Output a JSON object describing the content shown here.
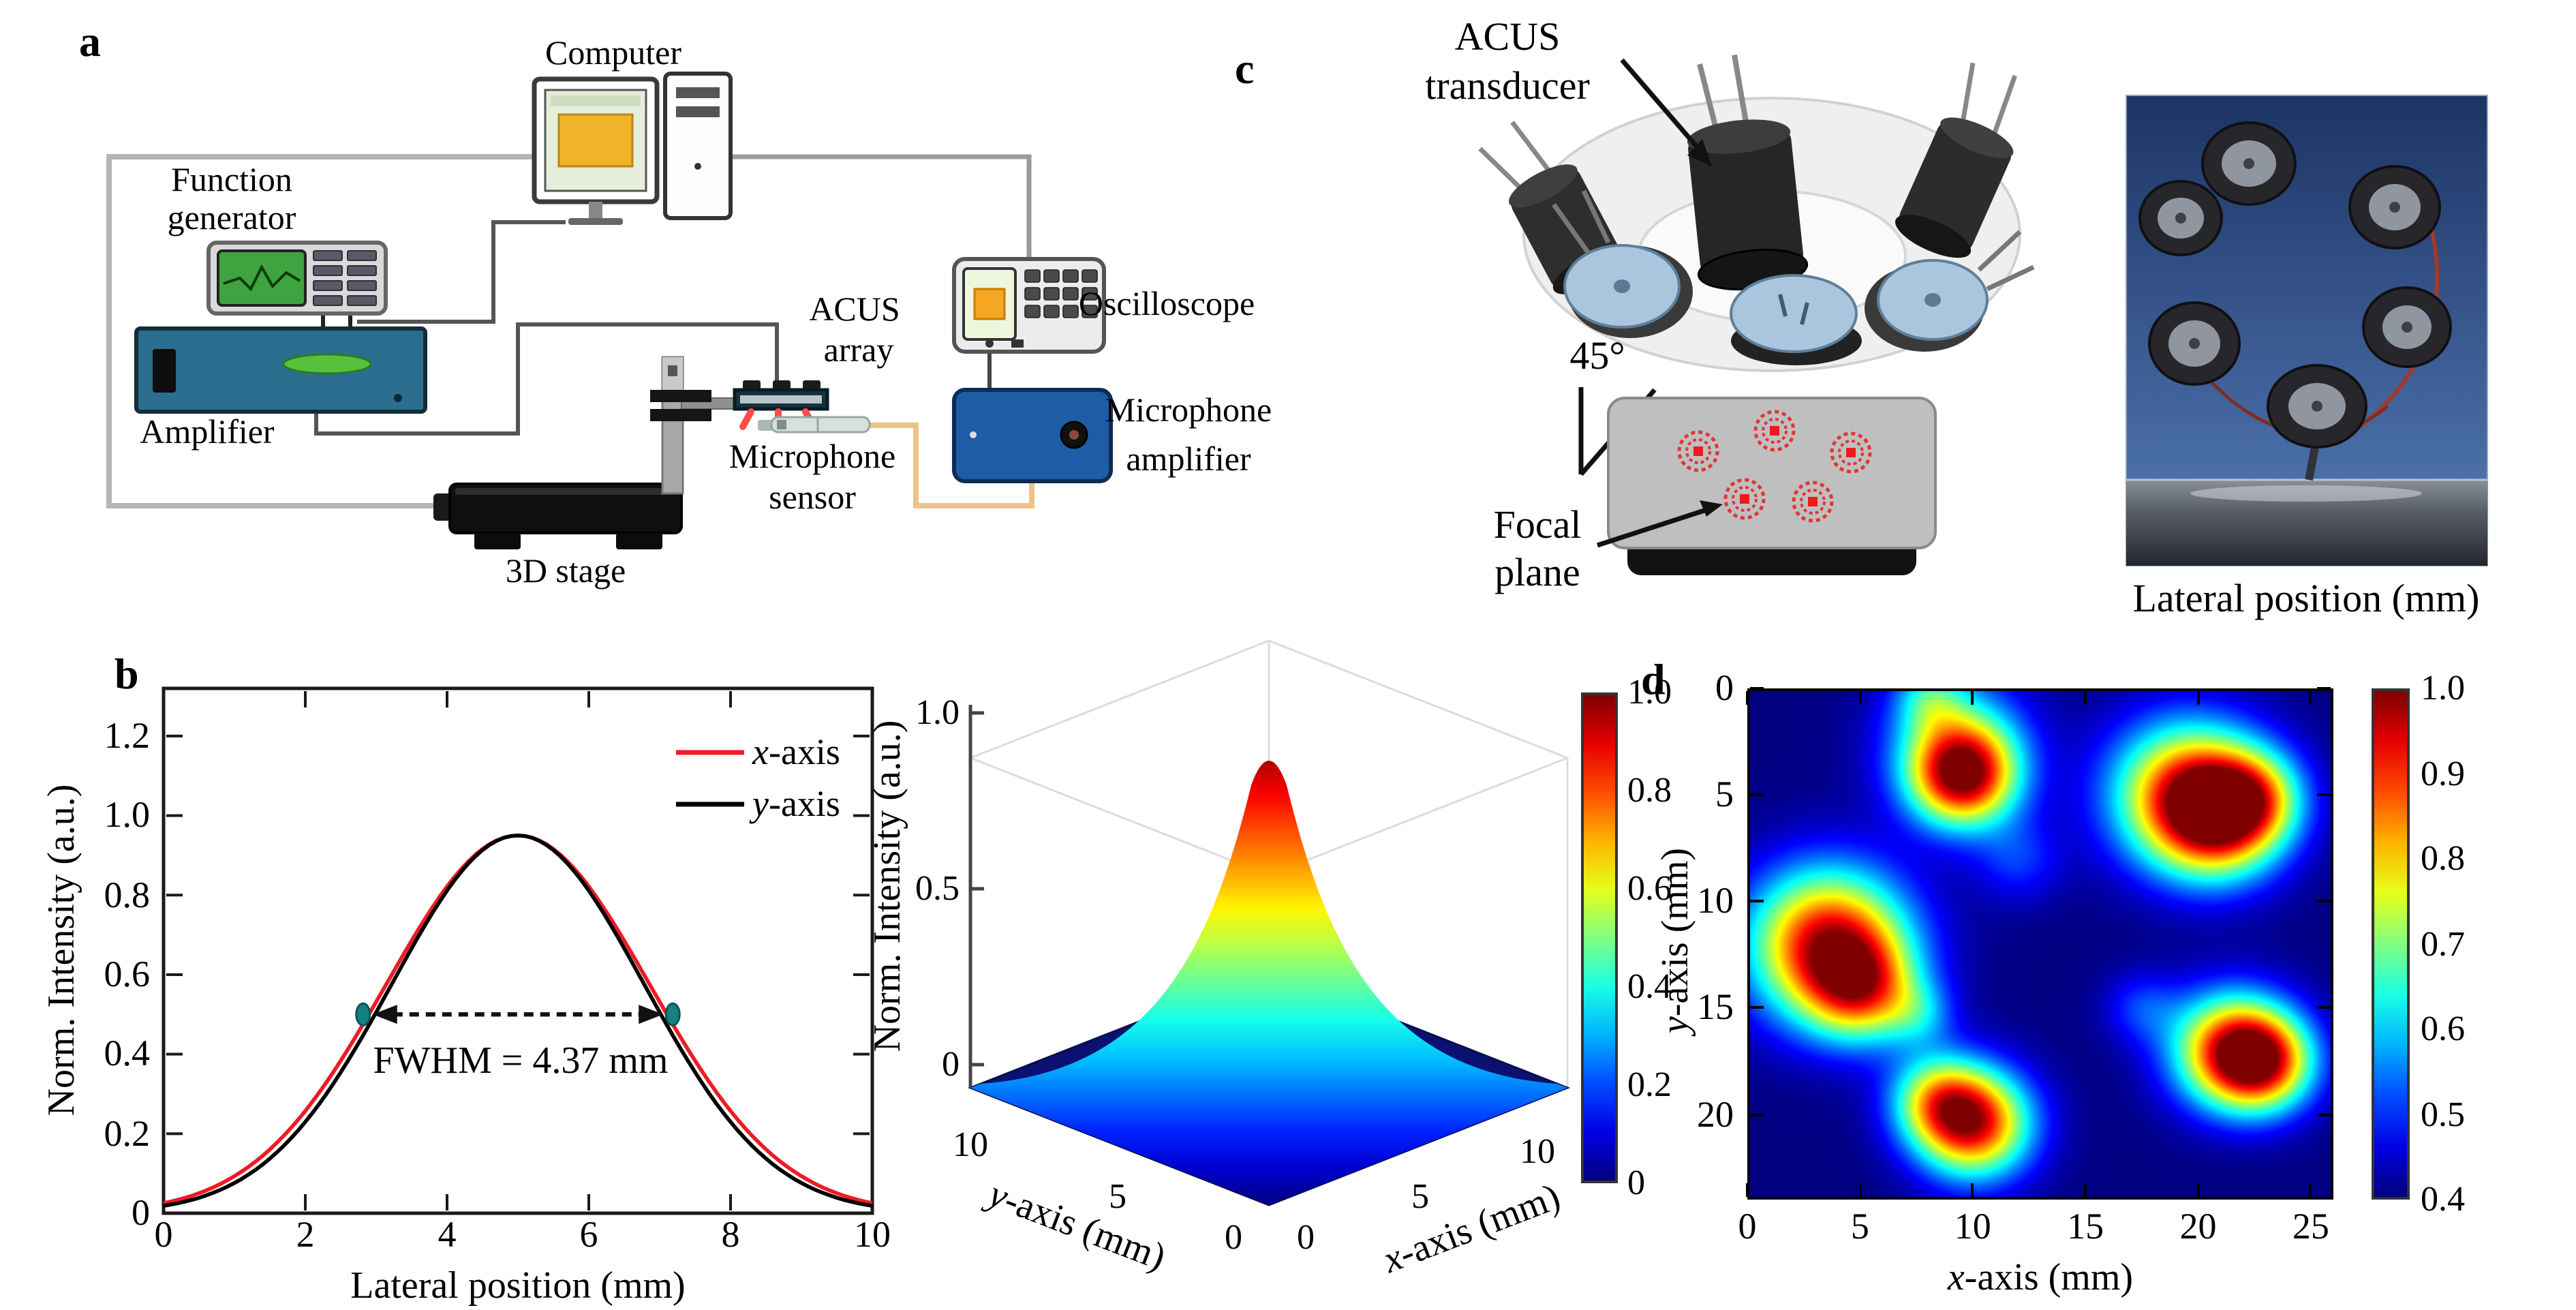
{
  "figure": {
    "panels": {
      "a": {
        "label": "a",
        "components": {
          "computer": "Computer",
          "function_generator": [
            "Function",
            "generator"
          ],
          "amplifier": "Amplifier",
          "acus_array": [
            "ACUS",
            "array"
          ],
          "microphone_sensor": [
            "Microphone",
            "sensor"
          ],
          "stage_3d": "3D stage",
          "oscilloscope": "Oscilloscope",
          "microphone_amplifier": [
            "Microphone",
            "amplifier"
          ]
        }
      },
      "b": {
        "label": "b"
      },
      "c": {
        "label": "c",
        "transducer_label": [
          "ACUS",
          "transducer"
        ],
        "angle": "45°",
        "focal_label": [
          "Focal",
          "plane"
        ],
        "photo_caption": "Lateral position (mm)"
      },
      "d": {
        "label": "d"
      }
    }
  },
  "chart_data": [
    {
      "type": "line",
      "panel": "b-left",
      "title": "",
      "xlabel": "Lateral position (mm)",
      "ylabel": "Norm. Intensity (a.u.)",
      "xlim": [
        0,
        10
      ],
      "ylim": [
        0,
        1.3
      ],
      "xticks": [
        "0",
        "2",
        "4",
        "6",
        "8",
        "10"
      ],
      "yticks": [
        "0",
        "0.2",
        "0.4",
        "0.6",
        "0.8",
        "1.0",
        "1.2"
      ],
      "grid": false,
      "legend_position": "top-right",
      "series": [
        {
          "name": "x-axis",
          "color": "#ed1c24",
          "center": 5,
          "peak": 0.95,
          "sigma": 1.856,
          "x": [
            0,
            0.5,
            1,
            1.5,
            2,
            2.5,
            3,
            3.5,
            4,
            4.5,
            5,
            5.5,
            6,
            6.5,
            7,
            7.5,
            8,
            8.5,
            9,
            9.5,
            10
          ],
          "y": [
            0.025,
            0.05,
            0.093,
            0.161,
            0.257,
            0.384,
            0.531,
            0.685,
            0.822,
            0.916,
            0.95,
            0.916,
            0.822,
            0.685,
            0.531,
            0.384,
            0.257,
            0.161,
            0.093,
            0.05,
            0.025
          ]
        },
        {
          "name": "y-axis",
          "color": "#000000",
          "center": 5,
          "peak": 0.95,
          "sigma": 1.78,
          "x": [
            0,
            0.5,
            1,
            1.5,
            2,
            2.5,
            3,
            3.5,
            4,
            4.5,
            5,
            5.5,
            6,
            6.5,
            7,
            7.5,
            8,
            8.5,
            9,
            9.5,
            10
          ],
          "y": [
            0.018,
            0.039,
            0.076,
            0.138,
            0.23,
            0.354,
            0.505,
            0.666,
            0.811,
            0.913,
            0.95,
            0.913,
            0.811,
            0.666,
            0.505,
            0.354,
            0.23,
            0.138,
            0.076,
            0.039,
            0.018
          ]
        }
      ],
      "annotation": {
        "text": "FWHM = 4.37 mm",
        "y": 0.5,
        "x_start": 2.815,
        "x_end": 7.185,
        "marker_color": "#178080"
      }
    },
    {
      "type": "heatmap",
      "panel": "b-right",
      "projection": "3d-surface",
      "xlabel": "x-axis (mm)",
      "ylabel": "y-axis (mm)",
      "zlabel": "Norm. Intensity (a.u.)",
      "xlim": [
        0,
        10
      ],
      "ylim": [
        0,
        10
      ],
      "zlim": [
        0,
        1.0
      ],
      "xticks": [
        "0",
        "5",
        "10"
      ],
      "yticks": [
        "0",
        "5",
        "10"
      ],
      "zticks": [
        "1.0",
        "0.5",
        "0"
      ],
      "peak": {
        "x": 5,
        "y": 5,
        "value": 0.95
      },
      "fwhm_mm": 4.37,
      "colormap": "jet",
      "colorbar_range": [
        0,
        1
      ],
      "colorbar_ticks": [
        "1.0",
        "0.8",
        "0.6",
        "0.4",
        "0.2",
        "0"
      ]
    },
    {
      "type": "heatmap",
      "panel": "d",
      "xlabel": "x-axis (mm)",
      "ylabel": "y-axis (mm)",
      "xlim": [
        0,
        26
      ],
      "ylim": [
        0,
        24
      ],
      "y_direction": "down",
      "xticks": [
        "0",
        "5",
        "10",
        "15",
        "20",
        "25"
      ],
      "yticks": [
        "0",
        "5",
        "10",
        "15",
        "20"
      ],
      "colormap": "jet",
      "background_value": 0.4,
      "colorbar_range": [
        0.4,
        1.0
      ],
      "colorbar_ticks": [
        "1.0",
        "0.9",
        "0.8",
        "0.7",
        "0.6",
        "0.5",
        "0.4"
      ],
      "spots": [
        {
          "x": 9.5,
          "y": 4.0,
          "peak": 0.93,
          "radius": 1.7
        },
        {
          "x": 9.2,
          "y": 2.2,
          "peak": 0.6,
          "radius": 2.2
        },
        {
          "x": 19.5,
          "y": 4.8,
          "peak": 0.84,
          "radius": 2.4
        },
        {
          "x": 21.0,
          "y": 6.0,
          "peak": 0.8,
          "radius": 2.0
        },
        {
          "x": 22.6,
          "y": 5.0,
          "peak": 0.62,
          "radius": 1.5
        },
        {
          "x": 3.5,
          "y": 12.0,
          "peak": 0.96,
          "radius": 2.5
        },
        {
          "x": 5.0,
          "y": 14.2,
          "peak": 0.7,
          "radius": 1.7
        },
        {
          "x": 21.5,
          "y": 17.0,
          "peak": 0.86,
          "radius": 1.9
        },
        {
          "x": 23.0,
          "y": 17.6,
          "peak": 0.78,
          "radius": 1.6
        },
        {
          "x": 10.0,
          "y": 20.5,
          "peak": 0.92,
          "radius": 1.8
        },
        {
          "x": 8.3,
          "y": 19.3,
          "peak": 0.66,
          "radius": 1.5
        },
        {
          "x": 8.0,
          "y": 0.3,
          "peak": 0.55,
          "radius": 1.1
        },
        {
          "x": 12.0,
          "y": 8.0,
          "peak": 0.5,
          "radius": 1.4
        },
        {
          "x": 7.6,
          "y": 15.3,
          "peak": 0.52,
          "radius": 1.1
        },
        {
          "x": 17.5,
          "y": 15.0,
          "peak": 0.5,
          "radius": 1.2
        }
      ]
    }
  ],
  "colors": {
    "accent_red": "#ed1c24",
    "marker_teal": "#178080",
    "amplifier_blue": "#2c6e8f",
    "mic_amp_blue": "#1e5ca6",
    "beam_red": "#ff4d4d",
    "focal_spot_red": "#e03636"
  }
}
